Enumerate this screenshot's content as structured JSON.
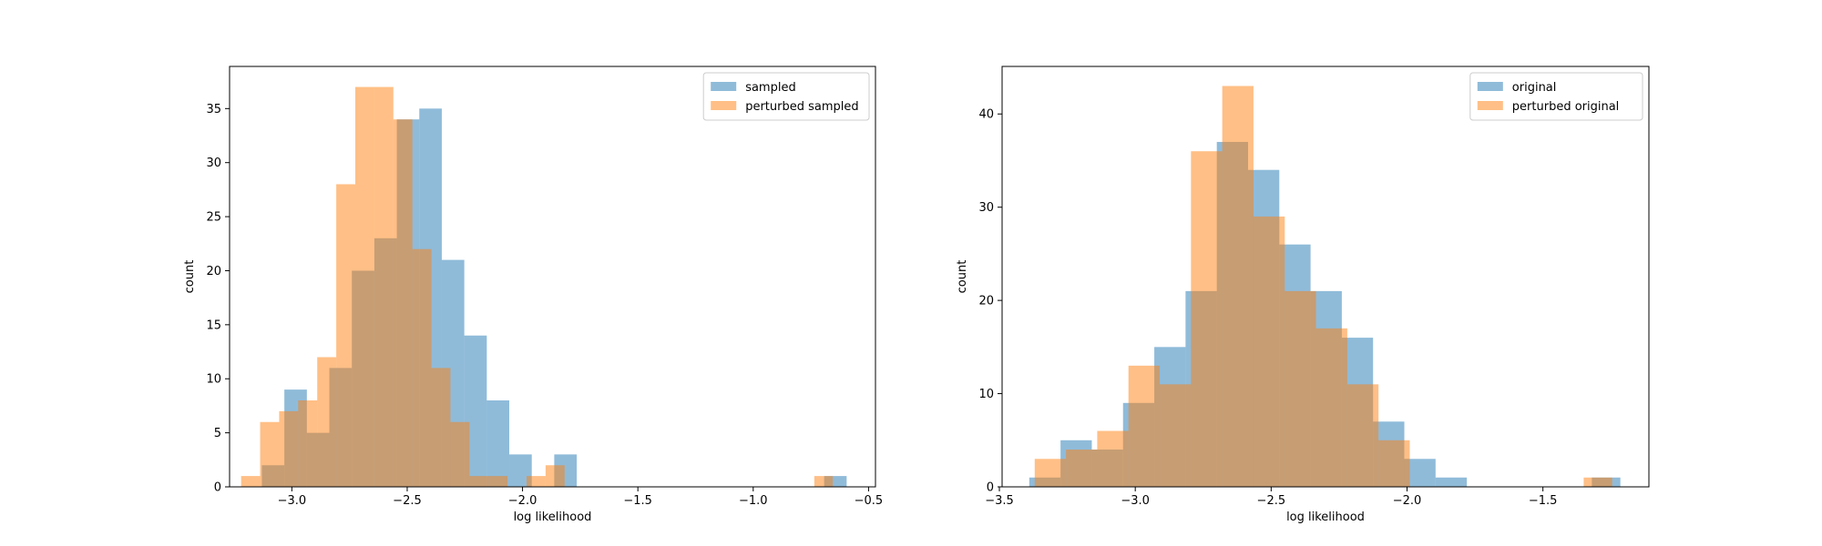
{
  "chart_data": [
    {
      "type": "bar",
      "subtype": "overlaid-histogram",
      "title": "",
      "xlabel": "log likelihood",
      "ylabel": "count",
      "xlim": [
        -3.27,
        -0.47
      ],
      "ylim": [
        0,
        38.9
      ],
      "xticks": [
        -3.0,
        -2.5,
        -2.0,
        -1.5,
        -1.0,
        -0.5
      ],
      "xtick_labels": [
        "−3.0",
        "−2.5",
        "−2.0",
        "−1.5",
        "−1.0",
        "−0.5"
      ],
      "yticks": [
        0,
        5,
        10,
        15,
        20,
        25,
        30,
        35
      ],
      "ytick_labels": [
        "0",
        "5",
        "10",
        "15",
        "20",
        "25",
        "30",
        "35"
      ],
      "grid": false,
      "legend_position": "top-right",
      "series": [
        {
          "name": "sampled",
          "color": "#1f77b4",
          "alpha": 0.5,
          "bin_edges": [
            -3.13,
            -3.0325,
            -2.935,
            -2.8375,
            -2.74,
            -2.6425,
            -2.545,
            -2.4475,
            -2.35,
            -2.2525,
            -2.155,
            -2.0575,
            -1.96,
            -1.8625,
            -1.765,
            -1.6675,
            -1.57,
            -1.4725,
            -1.375,
            -1.2775,
            -1.18,
            -1.0825,
            -0.985,
            -0.8875,
            -0.79,
            -0.6925,
            -0.595
          ],
          "counts": [
            2,
            9,
            5,
            11,
            20,
            23,
            34,
            35,
            21,
            14,
            8,
            3,
            0,
            3,
            0,
            0,
            0,
            0,
            0,
            0,
            0,
            0,
            0,
            0,
            0,
            1
          ]
        },
        {
          "name": "perturbed sampled",
          "color": "#ff7f0e",
          "alpha": 0.5,
          "bin_edges": [
            -3.22,
            -3.1375,
            -3.055,
            -2.9725,
            -2.89,
            -2.8075,
            -2.725,
            -2.6425,
            -2.56,
            -2.4775,
            -2.395,
            -2.3125,
            -2.23,
            -2.1475,
            -2.065,
            -1.9825,
            -1.9,
            -1.8175,
            -1.735
          ],
          "counts": [
            1,
            6,
            7,
            8,
            12,
            28,
            37,
            37,
            34,
            22,
            11,
            6,
            1,
            1,
            0,
            1,
            2,
            0
          ],
          "extra_bins": [
            {
              "edges": [
                -0.735,
                -0.69
              ],
              "count": 1
            },
            {
              "edges": [
                -0.69,
                -0.655
              ],
              "count": 1
            }
          ]
        }
      ]
    },
    {
      "type": "bar",
      "subtype": "overlaid-histogram",
      "title": "",
      "xlabel": "log likelihood",
      "ylabel": "count",
      "xlim": [
        -3.49,
        -1.11
      ],
      "ylim": [
        0,
        45.1
      ],
      "xticks": [
        -3.5,
        -3.0,
        -2.5,
        -2.0,
        -1.5
      ],
      "xtick_labels": [
        "−3.5",
        "−3.0",
        "−2.5",
        "−2.0",
        "−1.5"
      ],
      "yticks": [
        0,
        10,
        20,
        30,
        40
      ],
      "ytick_labels": [
        "0",
        "10",
        "20",
        "30",
        "40"
      ],
      "grid": false,
      "legend_position": "top-right",
      "series": [
        {
          "name": "original",
          "color": "#1f77b4",
          "alpha": 0.5,
          "bin_edges": [
            -3.39,
            -3.275,
            -3.16,
            -3.045,
            -2.93,
            -2.815,
            -2.7,
            -2.585,
            -2.47,
            -2.355,
            -2.24,
            -2.125,
            -2.01,
            -1.895,
            -1.78,
            -1.665,
            -1.55,
            -1.435,
            -1.32,
            -1.215
          ],
          "counts": [
            1,
            5,
            4,
            9,
            15,
            21,
            37,
            34,
            26,
            21,
            16,
            7,
            3,
            1,
            0,
            0,
            0,
            0,
            1
          ]
        },
        {
          "name": "perturbed original",
          "color": "#ff7f0e",
          "alpha": 0.5,
          "bin_edges": [
            -3.37,
            -3.255,
            -3.14,
            -3.025,
            -2.91,
            -2.795,
            -2.68,
            -2.565,
            -2.45,
            -2.335,
            -2.22,
            -2.105,
            -1.99
          ],
          "counts": [
            3,
            4,
            6,
            13,
            11,
            36,
            43,
            29,
            21,
            17,
            11,
            5
          ],
          "extra_bins": [
            {
              "edges": [
                -1.35,
                -1.245
              ],
              "count": 1
            }
          ]
        }
      ]
    }
  ]
}
